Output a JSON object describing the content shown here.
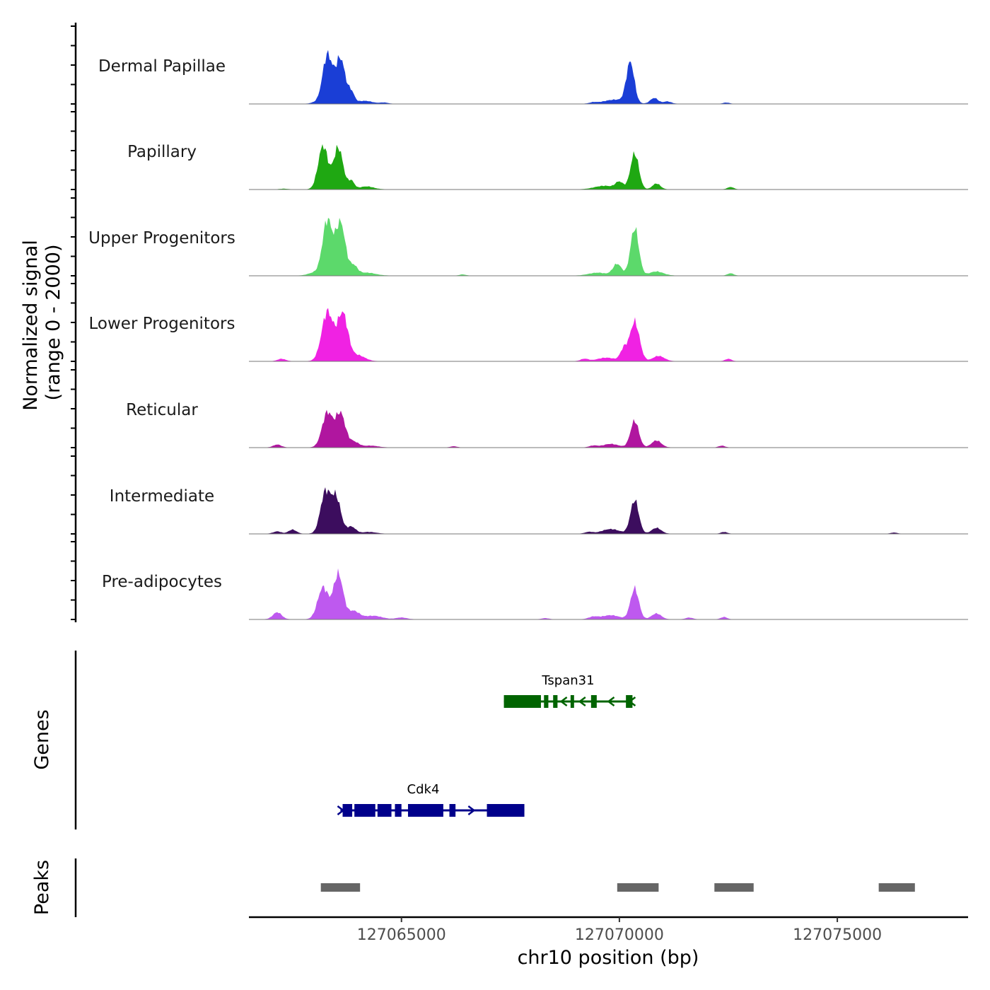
{
  "chart_data": {
    "type": "area",
    "title": "",
    "y_axis_label": "Normalized signal",
    "y_axis_range_label": "(range 0 - 2000)",
    "ylim": [
      0,
      2000
    ],
    "x_axis_label": "chr10 position (bp)",
    "xlim": [
      127061500,
      127078000
    ],
    "x_ticks": [
      127065000,
      127070000,
      127075000
    ],
    "x_tick_labels": [
      "127065000",
      "127070000",
      "127075000"
    ],
    "genes_track_label": "Genes",
    "peaks_track_label": "Peaks",
    "tracks": [
      {
        "name": "Dermal Papillae",
        "color": "#1a3ed6",
        "peaks": [
          {
            "pos": 127063000,
            "height": 0.02,
            "width": 90
          },
          {
            "pos": 127063300,
            "height": 0.84,
            "width": 110
          },
          {
            "pos": 127063600,
            "height": 0.78,
            "width": 110
          },
          {
            "pos": 127063850,
            "height": 0.18,
            "width": 70
          },
          {
            "pos": 127064150,
            "height": 0.05,
            "width": 180
          },
          {
            "pos": 127064600,
            "height": 0.02,
            "width": 90
          },
          {
            "pos": 127069400,
            "height": 0.02,
            "width": 80
          },
          {
            "pos": 127069900,
            "height": 0.07,
            "width": 260
          },
          {
            "pos": 127070250,
            "height": 0.7,
            "width": 90
          },
          {
            "pos": 127070800,
            "height": 0.1,
            "width": 90
          },
          {
            "pos": 127071100,
            "height": 0.04,
            "width": 90
          },
          {
            "pos": 127072450,
            "height": 0.02,
            "width": 70
          }
        ]
      },
      {
        "name": "Papillary",
        "color": "#1fa812",
        "peaks": [
          {
            "pos": 127062300,
            "height": 0.01,
            "width": 90
          },
          {
            "pos": 127063200,
            "height": 0.75,
            "width": 110
          },
          {
            "pos": 127063550,
            "height": 0.72,
            "width": 110
          },
          {
            "pos": 127063850,
            "height": 0.14,
            "width": 70
          },
          {
            "pos": 127064200,
            "height": 0.05,
            "width": 160
          },
          {
            "pos": 127069650,
            "height": 0.06,
            "width": 220
          },
          {
            "pos": 127070000,
            "height": 0.12,
            "width": 90
          },
          {
            "pos": 127070350,
            "height": 0.62,
            "width": 95
          },
          {
            "pos": 127070850,
            "height": 0.1,
            "width": 90
          },
          {
            "pos": 127072550,
            "height": 0.04,
            "width": 70
          }
        ]
      },
      {
        "name": "Upper Progenitors",
        "color": "#5cd96b",
        "peaks": [
          {
            "pos": 127063000,
            "height": 0.05,
            "width": 140
          },
          {
            "pos": 127063300,
            "height": 0.95,
            "width": 110
          },
          {
            "pos": 127063600,
            "height": 0.92,
            "width": 110
          },
          {
            "pos": 127063900,
            "height": 0.16,
            "width": 90
          },
          {
            "pos": 127064200,
            "height": 0.05,
            "width": 200
          },
          {
            "pos": 127066400,
            "height": 0.02,
            "width": 70
          },
          {
            "pos": 127069500,
            "height": 0.05,
            "width": 200
          },
          {
            "pos": 127069950,
            "height": 0.2,
            "width": 100
          },
          {
            "pos": 127070350,
            "height": 0.82,
            "width": 95
          },
          {
            "pos": 127070850,
            "height": 0.07,
            "width": 160
          },
          {
            "pos": 127072550,
            "height": 0.04,
            "width": 70
          }
        ]
      },
      {
        "name": "Lower Progenitors",
        "color": "#f022e3",
        "peaks": [
          {
            "pos": 127062250,
            "height": 0.04,
            "width": 90
          },
          {
            "pos": 127063300,
            "height": 0.85,
            "width": 130
          },
          {
            "pos": 127063650,
            "height": 0.82,
            "width": 120
          },
          {
            "pos": 127064000,
            "height": 0.1,
            "width": 160
          },
          {
            "pos": 127069200,
            "height": 0.04,
            "width": 90
          },
          {
            "pos": 127069700,
            "height": 0.06,
            "width": 200
          },
          {
            "pos": 127070100,
            "height": 0.2,
            "width": 80
          },
          {
            "pos": 127070350,
            "height": 0.68,
            "width": 110
          },
          {
            "pos": 127070900,
            "height": 0.09,
            "width": 130
          },
          {
            "pos": 127072500,
            "height": 0.04,
            "width": 70
          }
        ]
      },
      {
        "name": "Reticular",
        "color": "#b0169f",
        "peaks": [
          {
            "pos": 127062150,
            "height": 0.05,
            "width": 90
          },
          {
            "pos": 127063300,
            "height": 0.6,
            "width": 120
          },
          {
            "pos": 127063600,
            "height": 0.58,
            "width": 110
          },
          {
            "pos": 127063900,
            "height": 0.1,
            "width": 120
          },
          {
            "pos": 127064300,
            "height": 0.03,
            "width": 160
          },
          {
            "pos": 127066200,
            "height": 0.02,
            "width": 70
          },
          {
            "pos": 127069400,
            "height": 0.03,
            "width": 90
          },
          {
            "pos": 127069800,
            "height": 0.06,
            "width": 180
          },
          {
            "pos": 127070350,
            "height": 0.46,
            "width": 95
          },
          {
            "pos": 127070850,
            "height": 0.12,
            "width": 110
          },
          {
            "pos": 127072350,
            "height": 0.03,
            "width": 70
          }
        ]
      },
      {
        "name": "Intermediate",
        "color": "#3c0d5e",
        "peaks": [
          {
            "pos": 127062150,
            "height": 0.04,
            "width": 90
          },
          {
            "pos": 127062500,
            "height": 0.07,
            "width": 90
          },
          {
            "pos": 127063250,
            "height": 0.7,
            "width": 110
          },
          {
            "pos": 127063500,
            "height": 0.62,
            "width": 110
          },
          {
            "pos": 127063850,
            "height": 0.12,
            "width": 100
          },
          {
            "pos": 127064250,
            "height": 0.03,
            "width": 160
          },
          {
            "pos": 127069300,
            "height": 0.03,
            "width": 90
          },
          {
            "pos": 127069800,
            "height": 0.08,
            "width": 200
          },
          {
            "pos": 127070350,
            "height": 0.58,
            "width": 95
          },
          {
            "pos": 127070850,
            "height": 0.1,
            "width": 110
          },
          {
            "pos": 127072400,
            "height": 0.03,
            "width": 70
          },
          {
            "pos": 127076300,
            "height": 0.02,
            "width": 70
          }
        ]
      },
      {
        "name": "Pre-adipocytes",
        "color": "#be59ef",
        "peaks": [
          {
            "pos": 127062150,
            "height": 0.12,
            "width": 100
          },
          {
            "pos": 127063200,
            "height": 0.55,
            "width": 120
          },
          {
            "pos": 127063550,
            "height": 0.78,
            "width": 110
          },
          {
            "pos": 127063900,
            "height": 0.14,
            "width": 130
          },
          {
            "pos": 127064350,
            "height": 0.06,
            "width": 200
          },
          {
            "pos": 127065000,
            "height": 0.03,
            "width": 120
          },
          {
            "pos": 127068300,
            "height": 0.02,
            "width": 80
          },
          {
            "pos": 127069400,
            "height": 0.04,
            "width": 110
          },
          {
            "pos": 127069800,
            "height": 0.07,
            "width": 200
          },
          {
            "pos": 127070350,
            "height": 0.53,
            "width": 95
          },
          {
            "pos": 127070850,
            "height": 0.1,
            "width": 110
          },
          {
            "pos": 127071600,
            "height": 0.03,
            "width": 80
          },
          {
            "pos": 127072400,
            "height": 0.04,
            "width": 70
          }
        ]
      }
    ],
    "genes": [
      {
        "name": "Tspan31",
        "strand": "-",
        "color": "#006400",
        "start": 127067350,
        "end": 127070300,
        "exons": [
          [
            127067350,
            127068200
          ],
          [
            127068270,
            127068370
          ],
          [
            127068480,
            127068580
          ],
          [
            127068880,
            127068960
          ],
          [
            127069350,
            127069480
          ],
          [
            127070150,
            127070300
          ]
        ]
      },
      {
        "name": "Cdk4",
        "strand": "+",
        "color": "#00008b",
        "start": 127063600,
        "end": 127067820,
        "exons": [
          [
            127063650,
            127063870
          ],
          [
            127063920,
            127064400
          ],
          [
            127064450,
            127064770
          ],
          [
            127064850,
            127065000
          ],
          [
            127065150,
            127065960
          ],
          [
            127066100,
            127066240
          ],
          [
            127066960,
            127067820
          ]
        ]
      }
    ],
    "peak_regions": [
      [
        127063150,
        127064050
      ],
      [
        127069950,
        127070900
      ],
      [
        127072180,
        127073080
      ],
      [
        127075950,
        127076780
      ]
    ],
    "peak_color": "#666666"
  }
}
